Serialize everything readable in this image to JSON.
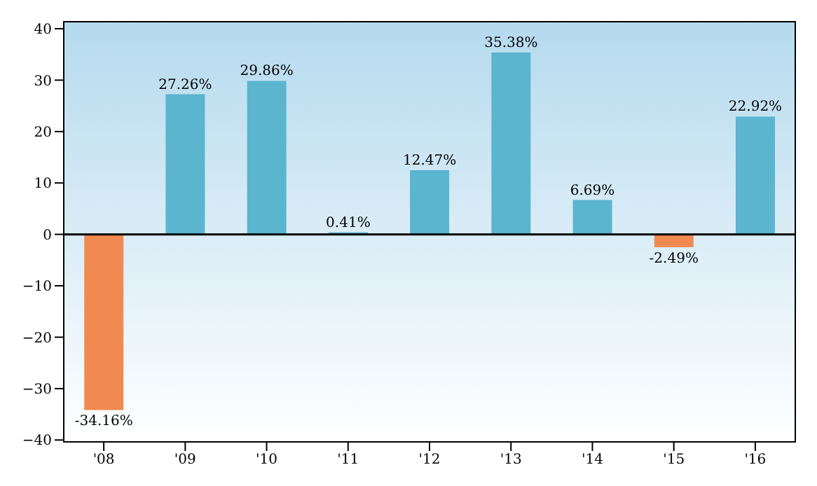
{
  "chart_data": {
    "type": "bar",
    "categories": [
      "'08",
      "'09",
      "'10",
      "'11",
      "'12",
      "'13",
      "'14",
      "'15",
      "'16"
    ],
    "values": [
      -34.16,
      27.26,
      29.86,
      0.41,
      12.47,
      35.38,
      6.69,
      -2.49,
      22.92
    ],
    "colors": [
      "#f08a50",
      "#5bb5cf",
      "#5bb5cf",
      "#5bb5cf",
      "#5bb5cf",
      "#5bb5cf",
      "#5bb5cf",
      "#f08a50",
      "#5bb5cf"
    ],
    "value_labels": [
      "-34.16%",
      "27.26%",
      "29.86%",
      "0.41%",
      "12.47%",
      "35.38%",
      "6.69%",
      "-2.49%",
      "22.92%"
    ],
    "ylim": [
      -40.5,
      41.5
    ],
    "yticks": [
      {
        "value": -40,
        "label": "−40"
      },
      {
        "value": -30,
        "label": "−30"
      },
      {
        "value": -20,
        "label": "−20"
      },
      {
        "value": -10,
        "label": "−10"
      },
      0,
      10,
      20,
      30,
      40
    ],
    "ref_lines": [
      {
        "axis": "y",
        "value": 0,
        "color": "#000000"
      }
    ],
    "grid": false,
    "legend": false
  }
}
